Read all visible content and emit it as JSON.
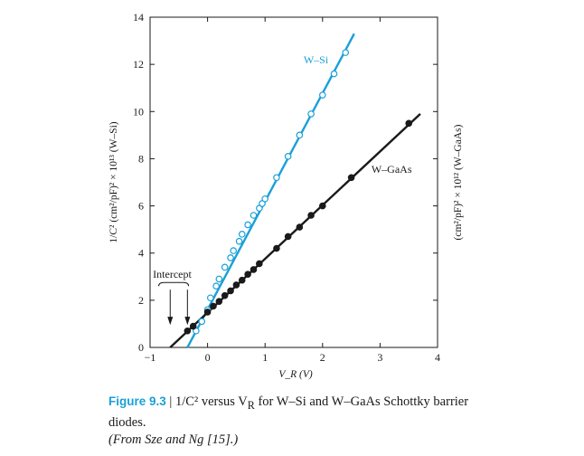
{
  "chart_data": {
    "type": "scatter",
    "xlabel": "V_R (V)",
    "ylabel_left": "1/C² (cm²/pF)² × 10¹³ (W–Si)",
    "ylabel_right": "(cm²/pF)² × 10¹² (W–GaAs)",
    "xlim": [
      -1,
      4
    ],
    "ylim": [
      0,
      14
    ],
    "x_ticks": [
      "−1",
      "0",
      "1",
      "2",
      "3",
      "4"
    ],
    "y_ticks": [
      "0",
      "2",
      "4",
      "6",
      "8",
      "10",
      "12",
      "14"
    ],
    "annotation": "Intercept",
    "colors": {
      "W-Si": "#1aa0d8",
      "W-GaAs": "#1a1a1a"
    },
    "series": [
      {
        "name": "W–Si",
        "marker": "open-circle",
        "line": {
          "x": [
            -0.35,
            2.55
          ],
          "y": [
            0,
            13.3
          ]
        },
        "x": [
          -0.2,
          -0.1,
          0.0,
          0.05,
          0.15,
          0.2,
          0.3,
          0.4,
          0.45,
          0.55,
          0.6,
          0.7,
          0.8,
          0.9,
          0.95,
          1.0,
          1.2,
          1.4,
          1.6,
          1.8,
          2.0,
          2.2,
          2.4
        ],
        "y": [
          0.7,
          1.1,
          1.6,
          2.1,
          2.6,
          2.9,
          3.4,
          3.8,
          4.1,
          4.5,
          4.8,
          5.2,
          5.6,
          5.9,
          6.1,
          6.3,
          7.2,
          8.1,
          9.0,
          9.9,
          10.7,
          11.6,
          12.5
        ]
      },
      {
        "name": "W–GaAs",
        "marker": "filled-circle",
        "line": {
          "x": [
            -0.65,
            3.7
          ],
          "y": [
            0,
            9.9
          ]
        },
        "x": [
          -0.35,
          -0.25,
          0.0,
          0.1,
          0.2,
          0.3,
          0.4,
          0.5,
          0.6,
          0.7,
          0.8,
          0.9,
          1.2,
          1.4,
          1.6,
          1.8,
          2.0,
          2.5,
          3.5
        ],
        "y": [
          0.7,
          0.9,
          1.5,
          1.75,
          1.95,
          2.2,
          2.4,
          2.65,
          2.85,
          3.1,
          3.3,
          3.55,
          4.2,
          4.7,
          5.1,
          5.6,
          6.0,
          7.2,
          9.5
        ]
      }
    ]
  },
  "caption": {
    "figure_number": "Figure 9.3",
    "separator": " | ",
    "title": "1/C² versus V",
    "title_subscript": "R",
    "title_rest": " for W–Si and W–GaAs Schottky barrier diodes.",
    "source": "(From Sze and Ng [15].)"
  }
}
